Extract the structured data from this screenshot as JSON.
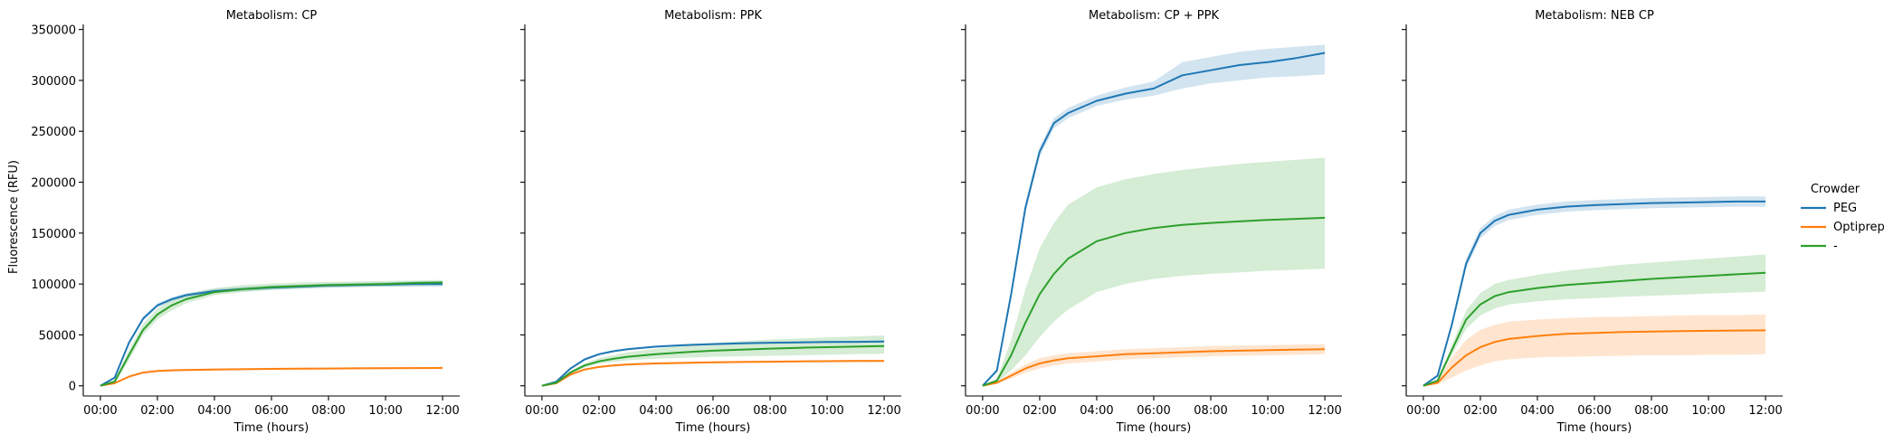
{
  "chart_data": {
    "type": "line",
    "ylabel": "Fluorescence (RFU)",
    "xlabel": "Time (hours)",
    "y_ticks": [
      0,
      50000,
      100000,
      150000,
      200000,
      250000,
      300000,
      350000
    ],
    "x_ticks": [
      "00:00",
      "02:00",
      "04:00",
      "06:00",
      "08:00",
      "10:00",
      "12:00"
    ],
    "xlim_hours": [
      -0.6,
      12.6
    ],
    "ylim": [
      -10000,
      355000
    ],
    "grid": false,
    "legend": {
      "title": "Crowder",
      "placement": "right",
      "entries": [
        {
          "label": "PEG",
          "color": "#1f77b4"
        },
        {
          "label": "Optiprep",
          "color": "#ff7f0e"
        },
        {
          "label": "-",
          "color": "#2ca02c"
        }
      ]
    },
    "x_hours": [
      0,
      0.5,
      1,
      1.5,
      2,
      2.5,
      3,
      4,
      5,
      6,
      7,
      8,
      9,
      10,
      11,
      12
    ],
    "panels": [
      {
        "title": "Metabolism: CP",
        "series": [
          {
            "name": "PEG",
            "color": "#1f77b4",
            "values": [
              0,
              8000,
              42000,
              66000,
              79000,
              85000,
              89000,
              93000,
              95000,
              96500,
              97500,
              98500,
              99000,
              99500,
              100000,
              100000
            ],
            "lower": [
              0,
              7000,
              40000,
              64000,
              77000,
              83000,
              87000,
              91000,
              93000,
              94500,
              95500,
              96500,
              97000,
              97500,
              97500,
              97500
            ],
            "upper": [
              0,
              9000,
              44000,
              68000,
              81000,
              87000,
              91000,
              95000,
              97000,
              98500,
              99500,
              100500,
              101000,
              101500,
              102500,
              102500
            ]
          },
          {
            "name": "Optiprep",
            "color": "#ff7f0e",
            "values": [
              0,
              2500,
              9000,
              13000,
              14500,
              15200,
              15600,
              16000,
              16300,
              16600,
              16800,
              17000,
              17200,
              17300,
              17400,
              17500
            ],
            "lower": [
              0,
              2000,
              8000,
              12000,
              13500,
              14200,
              14600,
              15000,
              15300,
              15600,
              15800,
              16000,
              16200,
              16300,
              16400,
              16500
            ],
            "upper": [
              0,
              3000,
              10000,
              14000,
              15500,
              16200,
              16600,
              17000,
              17300,
              17600,
              17800,
              18000,
              18200,
              18300,
              18400,
              18500
            ]
          },
          {
            "name": "-",
            "color": "#2ca02c",
            "values": [
              0,
              4000,
              30000,
              55000,
              70000,
              79000,
              85000,
              92000,
              95000,
              97000,
              98000,
              99000,
              99500,
              100000,
              101000,
              101500
            ],
            "lower": [
              0,
              2000,
              25000,
              50000,
              65000,
              74000,
              81000,
              89000,
              92000,
              94000,
              95500,
              96500,
              97000,
              97500,
              98000,
              98500
            ],
            "upper": [
              0,
              6000,
              35000,
              61000,
              76000,
              85000,
              90000,
              96000,
              99000,
              100500,
              101500,
              102000,
              102500,
              103000,
              103500,
              104000
            ]
          }
        ]
      },
      {
        "title": "Metabolism: PPK",
        "series": [
          {
            "name": "PEG",
            "color": "#1f77b4",
            "values": [
              0,
              4000,
              17000,
              26000,
              31000,
              34000,
              36000,
              38500,
              40000,
              41000,
              41800,
              42300,
              42700,
              43000,
              43200,
              43500
            ],
            "lower": [
              0,
              3500,
              16000,
              25000,
              30000,
              33000,
              35000,
              37500,
              39000,
              40000,
              40800,
              41300,
              41700,
              42000,
              42200,
              42500
            ],
            "upper": [
              0,
              4500,
              18000,
              27000,
              32000,
              35000,
              37000,
              39500,
              41000,
              42000,
              42800,
              43300,
              43700,
              44000,
              44200,
              44500
            ]
          },
          {
            "name": "Optiprep",
            "color": "#ff7f0e",
            "values": [
              0,
              2500,
              11000,
              16000,
              18500,
              20000,
              21000,
              22000,
              22500,
              23000,
              23400,
              23700,
              24000,
              24200,
              24400,
              24500
            ],
            "lower": [
              0,
              2200,
              10000,
              15000,
              17500,
              19000,
              20000,
              21000,
              21500,
              22000,
              22400,
              22700,
              23000,
              23200,
              23400,
              23500
            ],
            "upper": [
              0,
              2800,
              12000,
              17000,
              19500,
              21000,
              22000,
              23000,
              23500,
              24000,
              24400,
              24700,
              25000,
              25200,
              25400,
              25500
            ]
          },
          {
            "name": "-",
            "color": "#2ca02c",
            "values": [
              0,
              3000,
              13000,
              20000,
              24000,
              26500,
              28500,
              31000,
              33000,
              34500,
              35500,
              36500,
              37300,
              38000,
              38500,
              39000
            ],
            "lower": [
              0,
              2500,
              11500,
              18000,
              21500,
              23500,
              25000,
              26500,
              27500,
              28500,
              29000,
              29500,
              30000,
              30500,
              31000,
              31500
            ],
            "upper": [
              0,
              3500,
              14500,
              22000,
              27000,
              30000,
              33000,
              36500,
              39500,
              42000,
              44000,
              45500,
              46500,
              47500,
              48500,
              49500
            ]
          }
        ]
      },
      {
        "title": "Metabolism: CP + PPK",
        "series": [
          {
            "name": "PEG",
            "color": "#1f77b4",
            "values": [
              0,
              15000,
              90000,
              175000,
              230000,
              258000,
              268000,
              280000,
              287000,
              292000,
              305000,
              310000,
              315000,
              318000,
              322000,
              327000
            ],
            "lower": [
              0,
              13000,
              86000,
              170000,
              225000,
              253000,
              263000,
              275000,
              281000,
              285000,
              292000,
              297000,
              300000,
              303000,
              304000,
              306000
            ],
            "upper": [
              0,
              17000,
              94000,
              180000,
              235000,
              263000,
              273000,
              285000,
              293000,
              299000,
              318000,
              323000,
              328000,
              331000,
              333000,
              335000
            ]
          },
          {
            "name": "Optiprep",
            "color": "#ff7f0e",
            "values": [
              0,
              3000,
              10000,
              17000,
              22000,
              25000,
              27000,
              29000,
              31000,
              32000,
              33000,
              34000,
              34500,
              35000,
              35500,
              36000
            ],
            "lower": [
              0,
              2500,
              7000,
              13000,
              17000,
              20000,
              22000,
              24000,
              26000,
              27000,
              28000,
              29000,
              29500,
              30000,
              30500,
              31000
            ],
            "upper": [
              0,
              3500,
              13000,
              21000,
              27000,
              30000,
              32000,
              34000,
              36000,
              37000,
              38000,
              39000,
              39500,
              40000,
              40500,
              41000
            ]
          },
          {
            "name": "-",
            "color": "#2ca02c",
            "values": [
              0,
              5000,
              30000,
              62000,
              90000,
              110000,
              125000,
              142000,
              150000,
              155000,
              158000,
              160000,
              161500,
              163000,
              164000,
              165000
            ],
            "lower": [
              0,
              3000,
              15000,
              30000,
              48000,
              63000,
              75000,
              92000,
              100000,
              105000,
              108000,
              110000,
              111500,
              113000,
              114000,
              115000
            ],
            "upper": [
              0,
              7000,
              45000,
              95000,
              135000,
              160000,
              178000,
              195000,
              203000,
              208000,
              212000,
              215000,
              218000,
              220000,
              222000,
              224000
            ]
          }
        ]
      },
      {
        "title": "Metabolism: NEB CP",
        "series": [
          {
            "name": "PEG",
            "color": "#1f77b4",
            "values": [
              0,
              10000,
              60000,
              120000,
              150000,
              162000,
              168000,
              173000,
              176000,
              177500,
              178500,
              179500,
              180000,
              180500,
              181000,
              181000
            ],
            "lower": [
              0,
              9000,
              57000,
              115000,
              145000,
              157000,
              163000,
              168000,
              171000,
              172500,
              173500,
              174500,
              175000,
              175500,
              176000,
              176000
            ],
            "upper": [
              0,
              11000,
              63000,
              125000,
              155000,
              167000,
              173000,
              178000,
              181000,
              182500,
              183500,
              184500,
              185000,
              185500,
              186000,
              186000
            ]
          },
          {
            "name": "Optiprep",
            "color": "#ff7f0e",
            "values": [
              0,
              3000,
              18000,
              30000,
              38000,
              43000,
              46000,
              49000,
              51000,
              52000,
              52800,
              53300,
              53700,
              54000,
              54300,
              54500
            ],
            "lower": [
              0,
              1500,
              8000,
              15000,
              20000,
              24000,
              26000,
              28000,
              28500,
              29000,
              29500,
              30000,
              30000,
              30500,
              30500,
              31000
            ],
            "upper": [
              0,
              4500,
              28000,
              45000,
              55000,
              60000,
              63000,
              65000,
              66500,
              67500,
              68000,
              68500,
              69000,
              69500,
              69500,
              70000
            ]
          },
          {
            "name": "-",
            "color": "#2ca02c",
            "values": [
              0,
              5000,
              35000,
              65000,
              80000,
              88000,
              92000,
              96000,
              99000,
              101000,
              103000,
              105000,
              106500,
              108000,
              109500,
              111000
            ],
            "lower": [
              0,
              4000,
              30000,
              56000,
              69000,
              76000,
              80000,
              83000,
              85000,
              86000,
              87500,
              88500,
              89500,
              90500,
              91500,
              92500
            ],
            "upper": [
              0,
              6000,
              40000,
              74000,
              91000,
              100000,
              104000,
              109000,
              113000,
              116000,
              119000,
              121000,
              123000,
              125000,
              127000,
              129000
            ]
          }
        ]
      }
    ]
  }
}
